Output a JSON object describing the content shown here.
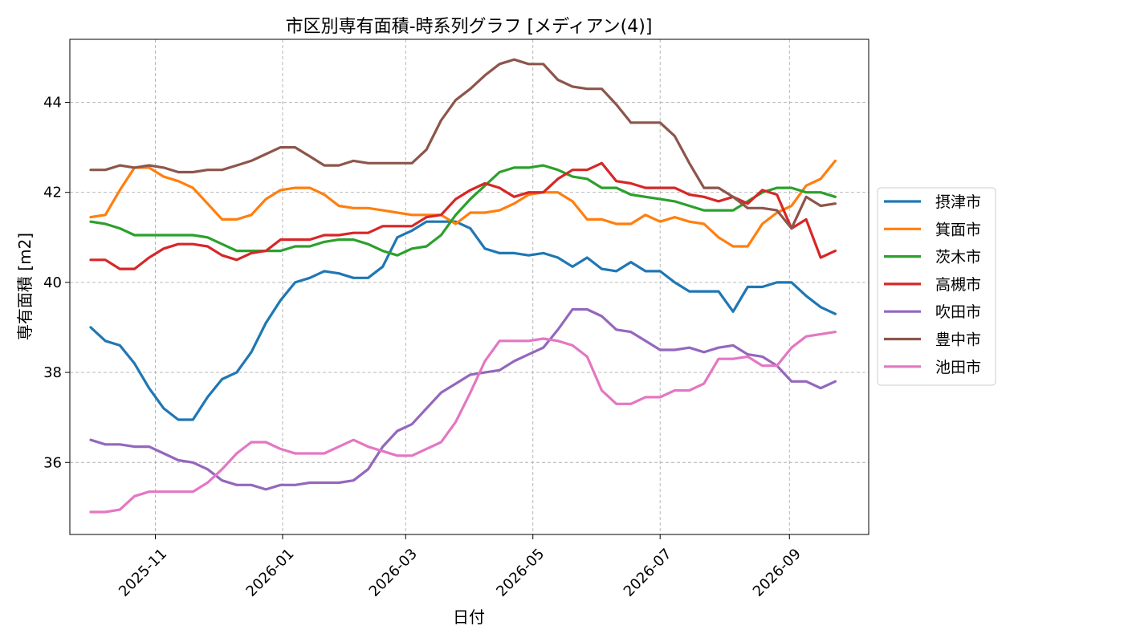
{
  "chart_data": {
    "type": "line",
    "title": "市区別専有面積-時系列グラフ [メディアン(4)]",
    "xlabel": "日付",
    "ylabel": "専有面積 [m2]",
    "x_ticks": [
      "2025-11-01",
      "2026-01-01",
      "2026-03-01",
      "2026-05-01",
      "2026-07-01",
      "2026-09-01"
    ],
    "x_tick_labels": [
      "2025-11",
      "2026-01",
      "2026-03",
      "2026-05",
      "2026-07",
      "2026-09"
    ],
    "y_ticks": [
      36,
      38,
      40,
      42,
      44
    ],
    "xlim": [
      "2025-09-21",
      "2026-10-09"
    ],
    "ylim": [
      34.4,
      45.4
    ],
    "grid": true,
    "legend_position": "center-right",
    "x": [
      "2025-10-01",
      "2025-10-08",
      "2025-10-15",
      "2025-10-22",
      "2025-10-29",
      "2025-11-05",
      "2025-11-12",
      "2025-11-19",
      "2025-11-26",
      "2025-12-03",
      "2025-12-10",
      "2025-12-17",
      "2025-12-24",
      "2025-12-31",
      "2026-01-07",
      "2026-01-14",
      "2026-01-21",
      "2026-01-28",
      "2026-02-04",
      "2026-02-11",
      "2026-02-18",
      "2026-02-25",
      "2026-03-04",
      "2026-03-11",
      "2026-03-18",
      "2026-03-25",
      "2026-04-01",
      "2026-04-08",
      "2026-04-15",
      "2026-04-22",
      "2026-04-29",
      "2026-05-06",
      "2026-05-13",
      "2026-05-20",
      "2026-05-27",
      "2026-06-03",
      "2026-06-10",
      "2026-06-17",
      "2026-06-24",
      "2026-07-01",
      "2026-07-08",
      "2026-07-15",
      "2026-07-22",
      "2026-07-29",
      "2026-08-05",
      "2026-08-12",
      "2026-08-19",
      "2026-08-26",
      "2026-09-02",
      "2026-09-09",
      "2026-09-16",
      "2026-09-23"
    ],
    "series": [
      {
        "name": "摂津市",
        "color": "#1f77b4",
        "values": [
          39.0,
          38.7,
          38.6,
          38.2,
          37.65,
          37.2,
          36.95,
          36.95,
          37.45,
          37.85,
          38.0,
          38.45,
          39.1,
          39.6,
          40.0,
          40.1,
          40.25,
          40.2,
          40.1,
          40.1,
          40.35,
          41.0,
          41.15,
          41.35,
          41.35,
          41.35,
          41.2,
          40.75,
          40.65,
          40.65,
          40.6,
          40.65,
          40.55,
          40.35,
          40.55,
          40.3,
          40.25,
          40.45,
          40.25,
          40.25,
          40.0,
          39.8,
          39.8,
          39.8,
          39.35,
          39.9,
          39.9,
          40.0,
          40.0,
          39.7,
          39.45,
          39.3
        ]
      },
      {
        "name": "箕面市",
        "color": "#ff7f0e",
        "values": [
          41.45,
          41.5,
          42.05,
          42.55,
          42.55,
          42.35,
          42.25,
          42.1,
          41.75,
          41.4,
          41.4,
          41.5,
          41.85,
          42.05,
          42.1,
          42.1,
          41.95,
          41.7,
          41.65,
          41.65,
          41.6,
          41.55,
          41.5,
          41.5,
          41.5,
          41.3,
          41.55,
          41.55,
          41.6,
          41.75,
          41.95,
          42.0,
          42.0,
          41.8,
          41.4,
          41.4,
          41.3,
          41.3,
          41.5,
          41.35,
          41.45,
          41.35,
          41.3,
          41.0,
          40.8,
          40.8,
          41.3,
          41.55,
          41.7,
          42.15,
          42.3,
          42.7
        ]
      },
      {
        "name": "茨木市",
        "color": "#2ca02c",
        "values": [
          41.35,
          41.3,
          41.2,
          41.05,
          41.05,
          41.05,
          41.05,
          41.05,
          41.0,
          40.85,
          40.7,
          40.7,
          40.7,
          40.7,
          40.8,
          40.8,
          40.9,
          40.95,
          40.95,
          40.85,
          40.7,
          40.6,
          40.75,
          40.8,
          41.05,
          41.5,
          41.85,
          42.15,
          42.45,
          42.55,
          42.55,
          42.6,
          42.5,
          42.35,
          42.3,
          42.1,
          42.1,
          41.95,
          41.9,
          41.85,
          41.8,
          41.7,
          41.6,
          41.6,
          41.6,
          41.8,
          42.0,
          42.1,
          42.1,
          42.0,
          42.0,
          41.9
        ]
      },
      {
        "name": "高槻市",
        "color": "#d62728",
        "values": [
          40.5,
          40.5,
          40.3,
          40.3,
          40.55,
          40.75,
          40.85,
          40.85,
          40.8,
          40.6,
          40.5,
          40.65,
          40.7,
          40.95,
          40.95,
          40.95,
          41.05,
          41.05,
          41.1,
          41.1,
          41.25,
          41.25,
          41.25,
          41.45,
          41.5,
          41.85,
          42.05,
          42.2,
          42.1,
          41.9,
          42.0,
          42.0,
          42.3,
          42.5,
          42.5,
          42.65,
          42.25,
          42.2,
          42.1,
          42.1,
          42.1,
          41.95,
          41.9,
          41.8,
          41.9,
          41.75,
          42.05,
          41.95,
          41.2,
          41.4,
          40.55,
          40.7
        ]
      },
      {
        "name": "吹田市",
        "color": "#9467bd",
        "values": [
          36.5,
          36.4,
          36.4,
          36.35,
          36.35,
          36.2,
          36.05,
          36.0,
          35.85,
          35.6,
          35.5,
          35.5,
          35.4,
          35.5,
          35.5,
          35.55,
          35.55,
          35.55,
          35.6,
          35.85,
          36.35,
          36.7,
          36.85,
          37.2,
          37.55,
          37.75,
          37.95,
          38.0,
          38.05,
          38.25,
          38.4,
          38.55,
          38.95,
          39.4,
          39.4,
          39.25,
          38.95,
          38.9,
          38.7,
          38.5,
          38.5,
          38.55,
          38.45,
          38.55,
          38.6,
          38.4,
          38.35,
          38.15,
          37.8,
          37.8,
          37.65,
          37.8
        ]
      },
      {
        "name": "豊中市",
        "color": "#8c564b",
        "values": [
          42.5,
          42.5,
          42.6,
          42.55,
          42.6,
          42.55,
          42.45,
          42.45,
          42.5,
          42.5,
          42.6,
          42.7,
          42.85,
          43.0,
          43.0,
          42.8,
          42.6,
          42.6,
          42.7,
          42.65,
          42.65,
          42.65,
          42.65,
          42.95,
          43.6,
          44.05,
          44.3,
          44.6,
          44.85,
          44.95,
          44.85,
          44.85,
          44.5,
          44.35,
          44.3,
          44.3,
          43.95,
          43.55,
          43.55,
          43.55,
          43.25,
          42.65,
          42.1,
          42.1,
          41.9,
          41.65,
          41.65,
          41.6,
          41.2,
          41.9,
          41.7,
          41.75
        ]
      },
      {
        "name": "池田市",
        "color": "#e377c2",
        "values": [
          34.9,
          34.9,
          34.95,
          35.25,
          35.35,
          35.35,
          35.35,
          35.35,
          35.55,
          35.85,
          36.2,
          36.45,
          36.45,
          36.3,
          36.2,
          36.2,
          36.2,
          36.35,
          36.5,
          36.35,
          36.25,
          36.15,
          36.15,
          36.3,
          36.45,
          36.9,
          37.55,
          38.25,
          38.7,
          38.7,
          38.7,
          38.75,
          38.7,
          38.6,
          38.35,
          37.6,
          37.3,
          37.3,
          37.45,
          37.45,
          37.6,
          37.6,
          37.75,
          38.3,
          38.3,
          38.35,
          38.15,
          38.15,
          38.55,
          38.8,
          38.85,
          38.9
        ]
      }
    ]
  }
}
